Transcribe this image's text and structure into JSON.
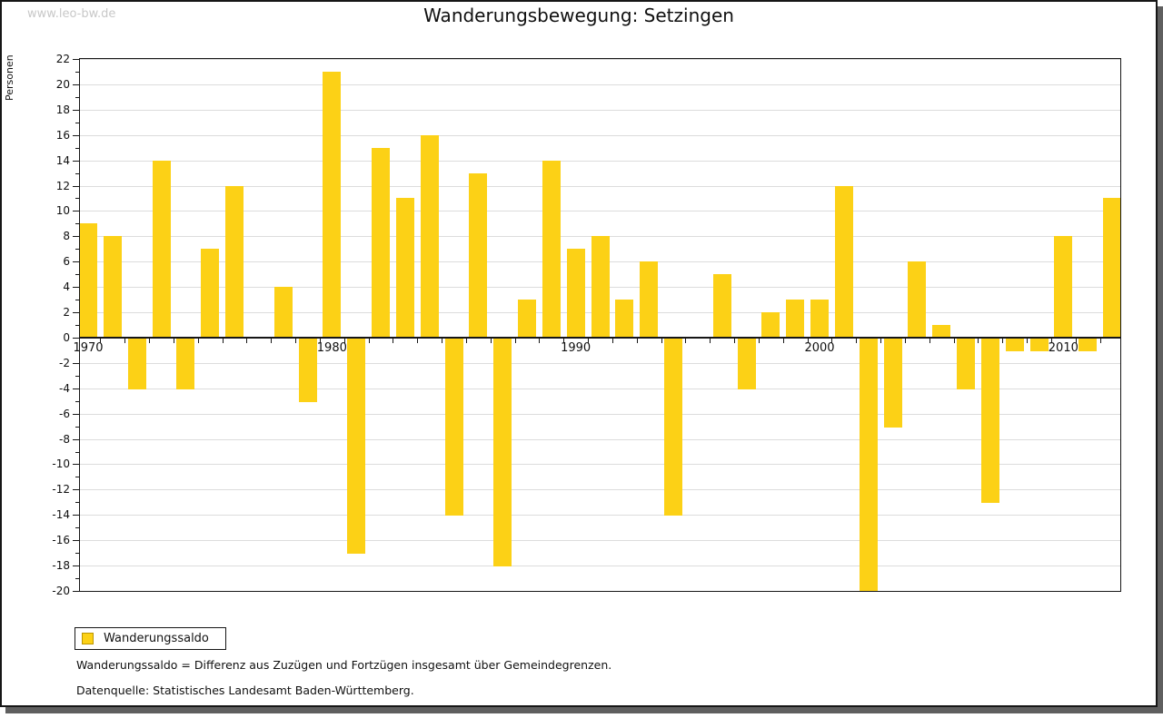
{
  "page": {
    "watermark": "www.leo-bw.de",
    "title": "Wanderungsbewegung: Setzingen"
  },
  "chart_data": {
    "type": "bar",
    "title": "Wanderungsbewegung: Setzingen",
    "ylabel": "Personen",
    "series_name": "Wanderungssaldo",
    "bar_color": "#FCD116",
    "grid": true,
    "legend_position": "bottom-left",
    "ylim": [
      -20,
      22
    ],
    "ytick_step": 2,
    "years": [
      1970,
      1971,
      1972,
      1973,
      1974,
      1975,
      1976,
      1977,
      1978,
      1979,
      1980,
      1981,
      1982,
      1983,
      1984,
      1985,
      1986,
      1987,
      1988,
      1989,
      1990,
      1991,
      1992,
      1993,
      1994,
      1995,
      1996,
      1997,
      1998,
      1999,
      2000,
      2001,
      2002,
      2003,
      2004,
      2005,
      2006,
      2007,
      2008,
      2009,
      2010,
      2011,
      2012
    ],
    "values": [
      9,
      8,
      -4,
      14,
      -4,
      7,
      12,
      0,
      4,
      -5,
      21,
      -17,
      15,
      11,
      16,
      -14,
      13,
      -18,
      3,
      14,
      7,
      8,
      3,
      6,
      -14,
      0,
      5,
      -4,
      2,
      3,
      3,
      12,
      -20,
      -7,
      6,
      1,
      -4,
      -13,
      -1,
      -1,
      8,
      -1,
      11
    ],
    "x_axis_labels": [
      {
        "year": 1970,
        "label": "1970"
      },
      {
        "year": 1980,
        "label": "1980"
      },
      {
        "year": 1990,
        "label": "1990"
      },
      {
        "year": 2000,
        "label": "2000"
      },
      {
        "year": 2010,
        "label": "2010"
      }
    ]
  },
  "legend": {
    "label": "Wanderungssaldo"
  },
  "footnotes": [
    "Wanderungssaldo = Differenz aus Zuzügen und Fortzügen insgesamt über Gemeindegrenzen.",
    "Datenquelle: Statistisches Landesamt Baden-Württemberg."
  ]
}
